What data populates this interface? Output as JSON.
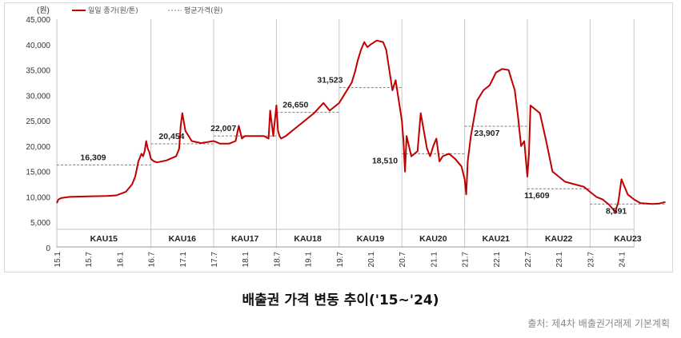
{
  "chart_data": {
    "type": "line",
    "unit_label": "(원)",
    "legend": {
      "series_label": "일일 종가(원/톤)",
      "average_label": "평균가격(원)",
      "line_color": "#c00000",
      "avg_color": "#7f7f7f"
    },
    "ylim": [
      0,
      45000
    ],
    "y_ticks": [
      "0",
      "5,000",
      "10,000",
      "15,000",
      "20,000",
      "25,000",
      "30,000",
      "35,000",
      "40,000",
      "45,000"
    ],
    "x_ticks": [
      "15.1",
      "15.7",
      "16.1",
      "16.7",
      "17.1",
      "17.7",
      "18.1",
      "18.7",
      "19.1",
      "19.7",
      "20.1",
      "20.7",
      "21.1",
      "21.7",
      "22.1",
      "22.7",
      "23.1",
      "23.7",
      "24.1"
    ],
    "periods": [
      {
        "name": "KAU15",
        "start": 0,
        "end": 3,
        "avg": 16309,
        "avg_label": "16,309"
      },
      {
        "name": "KAU16",
        "start": 3,
        "end": 5,
        "avg": 20454,
        "avg_label": "20,454"
      },
      {
        "name": "KAU17",
        "start": 5,
        "end": 7,
        "avg": 22007,
        "avg_label": "22,007"
      },
      {
        "name": "KAU18",
        "start": 7,
        "end": 9,
        "avg": 26650,
        "avg_label": "26,650"
      },
      {
        "name": "KAU19",
        "start": 9,
        "end": 11,
        "avg": 31523,
        "avg_label": "31,523"
      },
      {
        "name": "KAU20",
        "start": 11,
        "end": 13,
        "avg": 18510,
        "avg_label": "18,510"
      },
      {
        "name": "KAU21",
        "start": 13,
        "end": 15,
        "avg": 23907,
        "avg_label": "23,907"
      },
      {
        "name": "KAU22",
        "start": 15,
        "end": 17,
        "avg": 11609,
        "avg_label": "11,609"
      },
      {
        "name": "KAU23",
        "start": 17,
        "end": 19.4,
        "avg": 8591,
        "avg_label": "8,591"
      }
    ],
    "series": [
      {
        "name": "일일 종가(원/톤)",
        "x": [
          0,
          0.05,
          0.15,
          0.4,
          1.0,
          1.6,
          1.9,
          2.2,
          2.4,
          2.5,
          2.6,
          2.7,
          2.75,
          2.8,
          2.85,
          2.9,
          2.95,
          3.0,
          3.1,
          3.2,
          3.5,
          3.8,
          3.9,
          3.95,
          4.0,
          4.1,
          4.3,
          4.6,
          4.8,
          5.0,
          5.2,
          5.5,
          5.7,
          5.8,
          5.9,
          6.0,
          6.2,
          6.6,
          6.75,
          6.8,
          6.9,
          7.0,
          7.05,
          7.1,
          7.15,
          7.3,
          7.6,
          7.9,
          8.2,
          8.5,
          8.7,
          8.9,
          9.0,
          9.2,
          9.4,
          9.5,
          9.6,
          9.7,
          9.8,
          9.9,
          10.0,
          10.2,
          10.4,
          10.5,
          10.6,
          10.7,
          10.8,
          10.9,
          11.0,
          11.05,
          11.1,
          11.15,
          11.3,
          11.5,
          11.6,
          11.8,
          11.9,
          12.0,
          12.1,
          12.2,
          12.3,
          12.5,
          12.7,
          12.9,
          13.0,
          13.05,
          13.1,
          13.2,
          13.4,
          13.6,
          13.8,
          14.0,
          14.2,
          14.4,
          14.6,
          14.7,
          14.8,
          14.9,
          15.0,
          15.05,
          15.1,
          15.2,
          15.4,
          15.6,
          15.8,
          16.0,
          16.2,
          16.5,
          16.8,
          17.0,
          17.2,
          17.4,
          17.6,
          17.7,
          17.8,
          17.9,
          18.0,
          18.2,
          18.4,
          18.6,
          18.8,
          19.0,
          19.2,
          19.4
        ],
        "values": [
          8800,
          9500,
          9800,
          10000,
          10100,
          10200,
          10300,
          11000,
          12500,
          14000,
          17000,
          18500,
          18000,
          19000,
          21000,
          19500,
          18800,
          17500,
          17000,
          16800,
          17200,
          18000,
          19500,
          24000,
          26500,
          23000,
          21000,
          20600,
          20800,
          21000,
          20500,
          20500,
          21000,
          24000,
          21500,
          22000,
          22000,
          22000,
          21500,
          27000,
          22000,
          28000,
          23000,
          22000,
          21500,
          22000,
          23500,
          25000,
          26500,
          28500,
          27000,
          28000,
          28500,
          30500,
          32500,
          34500,
          37000,
          39000,
          40500,
          39500,
          40000,
          40800,
          40500,
          39000,
          35000,
          31000,
          33000,
          29000,
          25000,
          21000,
          15000,
          22000,
          18000,
          19000,
          26500,
          19500,
          18000,
          20000,
          21500,
          17000,
          18000,
          18500,
          17500,
          16000,
          13500,
          10500,
          17000,
          22000,
          29000,
          31000,
          32000,
          34500,
          35200,
          35000,
          31000,
          26000,
          20000,
          21000,
          14000,
          18500,
          28000,
          27500,
          26500,
          21000,
          15000,
          14000,
          13000,
          12500,
          12000,
          11000,
          10000,
          9500,
          8500,
          7800,
          7000,
          9000,
          13500,
          10500,
          9500,
          8800,
          8700,
          8600,
          8700,
          9000
        ]
      }
    ]
  },
  "caption": "배출권 가격 변동 추이('15~'24)",
  "source": "출처: 제4차 배출권거래제 기본계획"
}
